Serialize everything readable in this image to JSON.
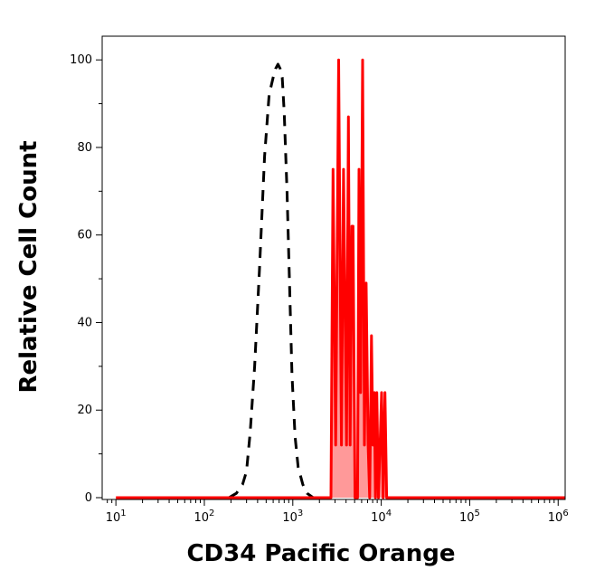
{
  "chart_data": {
    "type": "area",
    "xlabel": "CD34 Pacific Orange",
    "ylabel": "Relative Cell Count",
    "x_scale": "log",
    "xlim": [
      7,
      1200000
    ],
    "ylim": [
      0,
      105
    ],
    "grid": false,
    "legend": "none",
    "x_ticks": [
      {
        "value": 10,
        "base": "10",
        "exp": "1"
      },
      {
        "value": 100,
        "base": "10",
        "exp": "2"
      },
      {
        "value": 1000,
        "base": "10",
        "exp": "3"
      },
      {
        "value": 10000,
        "base": "10",
        "exp": "4"
      },
      {
        "value": 100000,
        "base": "10",
        "exp": "5"
      },
      {
        "value": 1000000,
        "base": "10",
        "exp": "6"
      }
    ],
    "y_ticks": [
      {
        "value": 0,
        "label": "0"
      },
      {
        "value": 20,
        "label": "20"
      },
      {
        "value": 40,
        "label": "40"
      },
      {
        "value": 60,
        "label": "60"
      },
      {
        "value": 80,
        "label": "80"
      },
      {
        "value": 100,
        "label": "100"
      }
    ],
    "series": [
      {
        "style": "dashed",
        "color": "#000000",
        "fill": "none",
        "points": [
          [
            190,
            0
          ],
          [
            230,
            1
          ],
          [
            270,
            3
          ],
          [
            300,
            6
          ],
          [
            330,
            15
          ],
          [
            370,
            30
          ],
          [
            420,
            52
          ],
          [
            480,
            78
          ],
          [
            540,
            92
          ],
          [
            600,
            96
          ],
          [
            640,
            98
          ],
          [
            680,
            99
          ],
          [
            720,
            98
          ],
          [
            760,
            96
          ],
          [
            800,
            88
          ],
          [
            860,
            70
          ],
          [
            920,
            48
          ],
          [
            980,
            28
          ],
          [
            1060,
            14
          ],
          [
            1150,
            7
          ],
          [
            1300,
            3
          ],
          [
            1450,
            1
          ],
          [
            1700,
            0
          ]
        ]
      },
      {
        "style": "solid",
        "color": "#ff0000",
        "fill": "#ff9999",
        "points": [
          [
            10,
            0
          ],
          [
            100,
            0
          ],
          [
            1000,
            0
          ],
          [
            2400,
            0
          ],
          [
            2700,
            0
          ],
          [
            2850,
            75
          ],
          [
            3050,
            12
          ],
          [
            3300,
            100
          ],
          [
            3550,
            12
          ],
          [
            3750,
            75
          ],
          [
            4050,
            12
          ],
          [
            4250,
            87
          ],
          [
            4450,
            12
          ],
          [
            4650,
            62
          ],
          [
            4800,
            62
          ],
          [
            5050,
            0
          ],
          [
            5400,
            0
          ],
          [
            5600,
            75
          ],
          [
            5850,
            24
          ],
          [
            6150,
            100
          ],
          [
            6450,
            12
          ],
          [
            6750,
            49
          ],
          [
            7100,
            12
          ],
          [
            7400,
            0
          ],
          [
            7750,
            37
          ],
          [
            8050,
            12
          ],
          [
            8350,
            24
          ],
          [
            8600,
            0
          ],
          [
            8900,
            24
          ],
          [
            9300,
            0
          ],
          [
            9700,
            12
          ],
          [
            10100,
            24
          ],
          [
            10500,
            0
          ],
          [
            11000,
            24
          ],
          [
            11500,
            0
          ],
          [
            12000,
            0
          ],
          [
            30000,
            0
          ],
          [
            100000,
            0
          ],
          [
            1000000,
            0
          ],
          [
            1200000,
            0
          ]
        ]
      }
    ]
  }
}
